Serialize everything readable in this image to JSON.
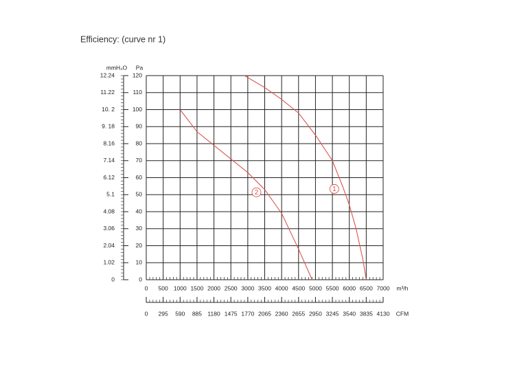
{
  "chart_data": {
    "type": "line",
    "title": "Efficiency:  (curve nr 1)",
    "xlabel": "m³/h",
    "ylabel": "Pa",
    "y2label": "mmH₂O",
    "x2label": "CFM",
    "xlim": [
      0,
      7000
    ],
    "xticks": [
      0,
      500,
      1000,
      1500,
      2000,
      2500,
      3000,
      3500,
      4000,
      4500,
      5000,
      5500,
      6000,
      6500,
      7000
    ],
    "ylim": [
      0,
      120
    ],
    "yticks": [
      0,
      10,
      20,
      30,
      40,
      50,
      60,
      70,
      80,
      90,
      100,
      110,
      120
    ],
    "y2lim": [
      0,
      12.24
    ],
    "y2ticks": [
      0,
      1.02,
      2.04,
      3.06,
      4.08,
      5.1,
      6.12,
      7.14,
      8.16,
      {
        "value": 9.18,
        "label": "9. 18"
      },
      {
        "value": 10.2,
        "label": "10. 2"
      },
      11.22,
      12.24
    ],
    "x2lim": [
      0,
      4130
    ],
    "x2ticks": [
      0,
      295,
      590,
      885,
      1180,
      1475,
      1770,
      2065,
      2360,
      2655,
      2950,
      3245,
      3540,
      3835,
      4130
    ],
    "grid": true,
    "series": [
      {
        "name": "1",
        "color": "#d9534f",
        "x": [
          2900,
          3500,
          4000,
          4500,
          5000,
          5500,
          5800,
          6000,
          6200,
          6400,
          6500
        ],
        "values": [
          120,
          113,
          106,
          98,
          85,
          70,
          55,
          44,
          30,
          12,
          0
        ]
      },
      {
        "name": "2",
        "color": "#d9534f",
        "x": [
          1000,
          1500,
          2000,
          2500,
          3000,
          3500,
          4000,
          4500,
          4900
        ],
        "values": [
          100,
          87,
          79,
          71,
          63,
          53,
          39,
          18,
          0
        ]
      }
    ]
  }
}
